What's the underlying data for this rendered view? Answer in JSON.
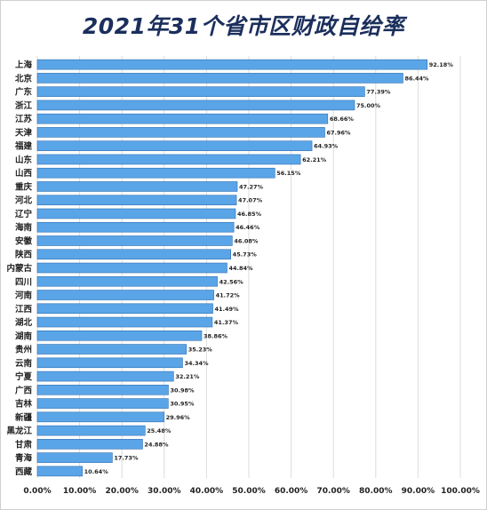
{
  "chart_data": {
    "type": "bar",
    "orientation": "horizontal",
    "title": "2021年31个省市区财政自给率",
    "categories": [
      "上海",
      "北京",
      "广东",
      "浙江",
      "江苏",
      "天津",
      "福建",
      "山东",
      "山西",
      "重庆",
      "河北",
      "辽宁",
      "海南",
      "安徽",
      "陕西",
      "内蒙古",
      "四川",
      "河南",
      "江西",
      "湖北",
      "湖南",
      "贵州",
      "云南",
      "宁夏",
      "广西",
      "吉林",
      "新疆",
      "黑龙江",
      "甘肃",
      "青海",
      "西藏"
    ],
    "values": [
      92.18,
      86.44,
      77.39,
      75.0,
      68.66,
      67.96,
      64.93,
      62.21,
      56.15,
      47.27,
      47.07,
      46.85,
      46.46,
      46.08,
      45.73,
      44.84,
      42.56,
      41.72,
      41.49,
      41.37,
      38.86,
      35.23,
      34.34,
      32.21,
      30.98,
      30.95,
      29.96,
      25.48,
      24.88,
      17.73,
      10.64
    ],
    "value_labels": [
      "92.18%",
      "86.44%",
      "77.39%",
      "75.00%",
      "68.66%",
      "67.96%",
      "64.93%",
      "62.21%",
      "56.15%",
      "47.27%",
      "47.07%",
      "46.85%",
      "46.46%",
      "46.08%",
      "45.73%",
      "44.84%",
      "42.56%",
      "41.72%",
      "41.49%",
      "41.37%",
      "38.86%",
      "35.23%",
      "34.34%",
      "32.21%",
      "30.98%",
      "30.95%",
      "29.96%",
      "25.48%",
      "24.88%",
      "17.73%",
      "10.64%"
    ],
    "xlim": [
      0,
      100
    ],
    "x_ticks": [
      "0.00%",
      "10.00%",
      "20.00%",
      "30.00%",
      "40.00%",
      "50.00%",
      "60.00%",
      "70.00%",
      "80.00%",
      "90.00%",
      "100.00%"
    ],
    "grid": true,
    "bar_color": "#5aa5e8",
    "bar_edge_color": "#2f6fb0"
  }
}
